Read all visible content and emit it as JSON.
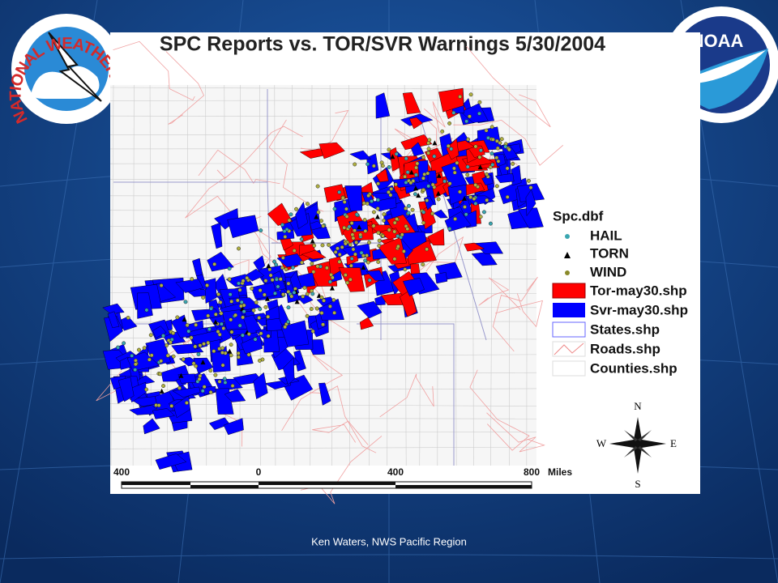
{
  "logos": {
    "left": "NATIONAL WEATHER",
    "right": "NOAA"
  },
  "title": "SPC Reports vs. TOR/SVR Warnings 5/30/2004",
  "legend": {
    "header": "Spc.dbf",
    "items": [
      "HAIL",
      "TORN",
      "WIND",
      "Tor-may30.shp",
      "Svr-may30.shp",
      "States.shp",
      "Roads.shp",
      "Counties.shp"
    ]
  },
  "scale": {
    "labels": [
      "400",
      "0",
      "400",
      "800"
    ],
    "unit": "Miles"
  },
  "compass": {
    "n": "N",
    "s": "S",
    "e": "E",
    "w": "W"
  },
  "footer": "Ken Waters, NWS Pacific Region"
}
